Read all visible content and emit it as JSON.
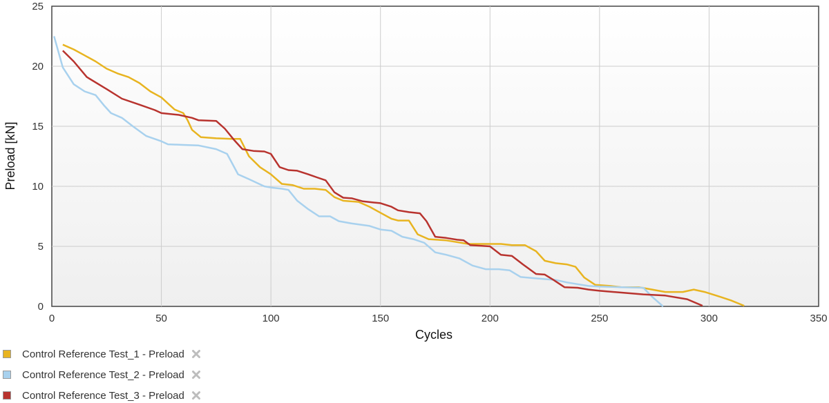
{
  "chart_data": {
    "type": "line",
    "title": "",
    "xlabel": "Cycles",
    "ylabel": "Preload [kN]",
    "xlim": [
      0,
      350
    ],
    "ylim": [
      0,
      25
    ],
    "xticks": [
      0,
      50,
      100,
      150,
      200,
      250,
      300,
      350
    ],
    "yticks": [
      0,
      5,
      10,
      15,
      20,
      25
    ],
    "grid": true,
    "legend_position": "bottom-left",
    "series": [
      {
        "name": "Control Reference Test_1 - Preload",
        "color": "#e8b420",
        "points": [
          [
            5,
            21.8
          ],
          [
            10,
            21.4
          ],
          [
            15,
            20.9
          ],
          [
            20,
            20.4
          ],
          [
            25,
            19.8
          ],
          [
            30,
            19.4
          ],
          [
            35,
            19.1
          ],
          [
            40,
            18.6
          ],
          [
            45,
            17.9
          ],
          [
            50,
            17.4
          ],
          [
            53,
            16.9
          ],
          [
            56,
            16.4
          ],
          [
            60,
            16.1
          ],
          [
            62,
            15.5
          ],
          [
            64,
            14.7
          ],
          [
            68,
            14.1
          ],
          [
            75,
            14.0
          ],
          [
            82,
            13.95
          ],
          [
            86,
            13.95
          ],
          [
            90,
            12.5
          ],
          [
            95,
            11.6
          ],
          [
            100,
            11.0
          ],
          [
            105,
            10.2
          ],
          [
            110,
            10.1
          ],
          [
            115,
            9.8
          ],
          [
            120,
            9.8
          ],
          [
            125,
            9.7
          ],
          [
            129,
            9.1
          ],
          [
            133,
            8.8
          ],
          [
            140,
            8.7
          ],
          [
            145,
            8.3
          ],
          [
            150,
            7.8
          ],
          [
            155,
            7.3
          ],
          [
            158,
            7.15
          ],
          [
            163,
            7.15
          ],
          [
            167,
            6.0
          ],
          [
            172,
            5.6
          ],
          [
            180,
            5.5
          ],
          [
            190,
            5.2
          ],
          [
            200,
            5.2
          ],
          [
            205,
            5.2
          ],
          [
            210,
            5.1
          ],
          [
            216,
            5.1
          ],
          [
            221,
            4.6
          ],
          [
            225,
            3.8
          ],
          [
            230,
            3.6
          ],
          [
            235,
            3.5
          ],
          [
            239,
            3.3
          ],
          [
            243,
            2.4
          ],
          [
            248,
            1.8
          ],
          [
            255,
            1.7
          ],
          [
            260,
            1.6
          ],
          [
            268,
            1.6
          ],
          [
            274,
            1.4
          ],
          [
            280,
            1.2
          ],
          [
            288,
            1.2
          ],
          [
            293,
            1.4
          ],
          [
            298,
            1.2
          ],
          [
            305,
            0.8
          ],
          [
            310,
            0.5
          ],
          [
            316,
            0.05
          ]
        ]
      },
      {
        "name": "Control Reference Test_2 - Preload",
        "color": "#a8d1ee",
        "points": [
          [
            1,
            22.5
          ],
          [
            5,
            19.9
          ],
          [
            10,
            18.5
          ],
          [
            15,
            17.9
          ],
          [
            20,
            17.6
          ],
          [
            24,
            16.7
          ],
          [
            27,
            16.1
          ],
          [
            32,
            15.7
          ],
          [
            37,
            15.0
          ],
          [
            43,
            14.2
          ],
          [
            50,
            13.75
          ],
          [
            53,
            13.5
          ],
          [
            60,
            13.45
          ],
          [
            67,
            13.4
          ],
          [
            75,
            13.1
          ],
          [
            80,
            12.7
          ],
          [
            85,
            11.0
          ],
          [
            90,
            10.6
          ],
          [
            97,
            10.0
          ],
          [
            100,
            9.9
          ],
          [
            105,
            9.8
          ],
          [
            108,
            9.7
          ],
          [
            112,
            8.8
          ],
          [
            117,
            8.1
          ],
          [
            122,
            7.5
          ],
          [
            127,
            7.5
          ],
          [
            131,
            7.1
          ],
          [
            137,
            6.9
          ],
          [
            145,
            6.7
          ],
          [
            150,
            6.4
          ],
          [
            155,
            6.3
          ],
          [
            160,
            5.8
          ],
          [
            165,
            5.6
          ],
          [
            170,
            5.3
          ],
          [
            175,
            4.5
          ],
          [
            180,
            4.3
          ],
          [
            186,
            4.0
          ],
          [
            192,
            3.4
          ],
          [
            198,
            3.1
          ],
          [
            204,
            3.1
          ],
          [
            209,
            3.0
          ],
          [
            214,
            2.45
          ],
          [
            220,
            2.35
          ],
          [
            230,
            2.2
          ],
          [
            235,
            2.0
          ],
          [
            240,
            1.85
          ],
          [
            245,
            1.7
          ],
          [
            250,
            1.65
          ],
          [
            260,
            1.6
          ],
          [
            270,
            1.55
          ],
          [
            274,
            0.8
          ],
          [
            279,
            0.0
          ]
        ]
      },
      {
        "name": "Control Reference Test_3 - Preload",
        "color": "#b8332e",
        "points": [
          [
            5,
            21.3
          ],
          [
            10,
            20.4
          ],
          [
            16,
            19.1
          ],
          [
            25,
            18.1
          ],
          [
            32,
            17.3
          ],
          [
            40,
            16.8
          ],
          [
            47,
            16.35
          ],
          [
            50,
            16.1
          ],
          [
            58,
            15.95
          ],
          [
            64,
            15.7
          ],
          [
            67,
            15.5
          ],
          [
            75,
            15.45
          ],
          [
            79,
            14.8
          ],
          [
            83,
            13.9
          ],
          [
            87,
            13.1
          ],
          [
            92,
            12.95
          ],
          [
            97,
            12.9
          ],
          [
            100,
            12.7
          ],
          [
            104,
            11.6
          ],
          [
            108,
            11.35
          ],
          [
            112,
            11.3
          ],
          [
            117,
            11.0
          ],
          [
            121,
            10.75
          ],
          [
            125,
            10.5
          ],
          [
            129,
            9.5
          ],
          [
            133,
            9.05
          ],
          [
            137,
            9.0
          ],
          [
            142,
            8.75
          ],
          [
            147,
            8.65
          ],
          [
            150,
            8.6
          ],
          [
            155,
            8.3
          ],
          [
            158,
            8.0
          ],
          [
            163,
            7.85
          ],
          [
            168,
            7.75
          ],
          [
            171,
            7.1
          ],
          [
            175,
            5.8
          ],
          [
            180,
            5.7
          ],
          [
            185,
            5.55
          ],
          [
            188,
            5.5
          ],
          [
            191,
            5.1
          ],
          [
            200,
            5.0
          ],
          [
            205,
            4.3
          ],
          [
            210,
            4.2
          ],
          [
            215,
            3.5
          ],
          [
            221,
            2.7
          ],
          [
            225,
            2.65
          ],
          [
            229,
            2.2
          ],
          [
            234,
            1.6
          ],
          [
            240,
            1.55
          ],
          [
            245,
            1.4
          ],
          [
            250,
            1.3
          ],
          [
            260,
            1.15
          ],
          [
            270,
            1.0
          ],
          [
            280,
            0.9
          ],
          [
            290,
            0.6
          ],
          [
            297,
            0.05
          ]
        ]
      }
    ]
  },
  "legend": {
    "items": [
      {
        "label": "Control Reference Test_1 - Preload",
        "color": "#e8b420"
      },
      {
        "label": "Control Reference Test_2 - Preload",
        "color": "#a8d1ee"
      },
      {
        "label": "Control Reference Test_3 - Preload",
        "color": "#b8332e"
      }
    ],
    "remove_icon": "close-x-icon"
  }
}
